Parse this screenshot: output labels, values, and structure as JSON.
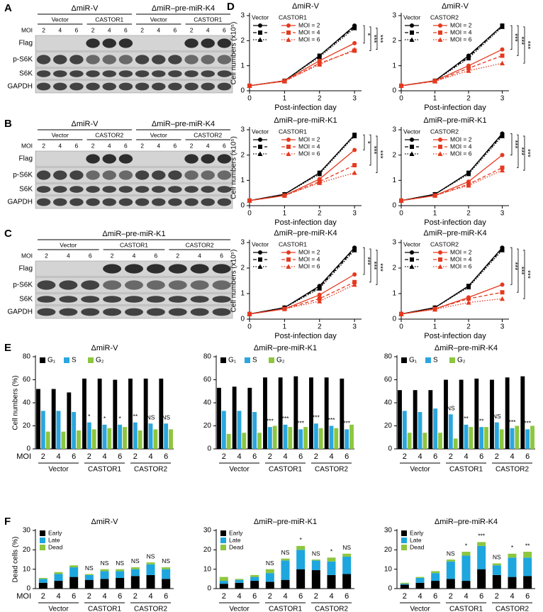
{
  "blots": [
    {
      "panel": "A",
      "moi_label": "MOI",
      "moi": [
        2,
        4,
        6
      ],
      "rows": [
        "Flag",
        "p-S6K",
        "S6K",
        "GAPDH"
      ],
      "groups": [
        {
          "title": "ΔmiR-V",
          "conditions": [
            "Vector",
            "CASTOR1"
          ]
        },
        {
          "title": "ΔmiR–pre-miR-K4",
          "conditions": [
            "Vector",
            "CASTOR1"
          ]
        }
      ]
    },
    {
      "panel": "B",
      "moi_label": "MOI",
      "moi": [
        2,
        4,
        6
      ],
      "rows": [
        "Flag",
        "p-S6K",
        "S6K",
        "GAPDH"
      ],
      "groups": [
        {
          "title": "ΔmiR-V",
          "conditions": [
            "Vector",
            "CASTOR2"
          ]
        },
        {
          "title": "ΔmiR–pre-miR-K4",
          "conditions": [
            "Vector",
            "CASTOR2"
          ]
        }
      ]
    },
    {
      "panel": "C",
      "moi_label": "MOI",
      "moi": [
        2,
        4,
        6
      ],
      "rows": [
        "Flag",
        "p-S6K",
        "S6K",
        "GAPDH"
      ],
      "groups": [
        {
          "title": "ΔmiR–pre-miR-K1",
          "conditions": [
            "Vector",
            "CASTOR1",
            "CASTOR2"
          ]
        }
      ]
    }
  ],
  "chart_data": [
    {
      "type": "line",
      "panel": "D",
      "title": "ΔmiR-V",
      "x": [
        0,
        1,
        2,
        3
      ],
      "xlim": [
        0,
        3.2
      ],
      "xticks": [
        0,
        1,
        2,
        3
      ],
      "ylim": [
        0,
        3
      ],
      "yticks": [
        0,
        1,
        2,
        3
      ],
      "xlabel": "Post-infection day",
      "ylabel": "Cell numbers (x10⁵)",
      "legend_headers": [
        "Vector",
        "CASTOR1"
      ],
      "legend_labels": [
        "MOI = 2",
        "MOI = 4",
        "MOI = 6"
      ],
      "series": [
        {
          "color": "#000000",
          "values": [
            0.2,
            0.4,
            1.4,
            2.6
          ]
        },
        {
          "color": "#000000",
          "values": [
            0.2,
            0.4,
            1.4,
            2.55
          ]
        },
        {
          "color": "#000000",
          "values": [
            0.2,
            0.4,
            1.35,
            2.5
          ]
        },
        {
          "color": "#e5391f",
          "values": [
            0.2,
            0.4,
            1.2,
            1.9
          ]
        },
        {
          "color": "#e5391f",
          "values": [
            0.2,
            0.38,
            1.1,
            1.6
          ]
        },
        {
          "color": "#e5391f",
          "values": [
            0.2,
            0.38,
            1.05,
            1.65
          ]
        }
      ],
      "significance": [
        "*",
        "***",
        "***"
      ]
    },
    {
      "type": "line",
      "title": "ΔmiR-V",
      "x": [
        0,
        1,
        2,
        3
      ],
      "xlim": [
        0,
        3.2
      ],
      "xticks": [
        0,
        1,
        2,
        3
      ],
      "ylim": [
        0,
        3
      ],
      "yticks": [
        0,
        1,
        2,
        3
      ],
      "xlabel": "Post-infection day",
      "legend_headers": [
        "Vector",
        "CASTOR2"
      ],
      "legend_labels": [
        "MOI = 2",
        "MOI = 4",
        "MOI = 6"
      ],
      "series": [
        {
          "color": "#000000",
          "values": [
            0.2,
            0.4,
            1.4,
            2.6
          ]
        },
        {
          "color": "#000000",
          "values": [
            0.2,
            0.4,
            1.35,
            2.6
          ]
        },
        {
          "color": "#000000",
          "values": [
            0.2,
            0.4,
            1.3,
            2.55
          ]
        },
        {
          "color": "#e5391f",
          "values": [
            0.2,
            0.4,
            1.0,
            1.65
          ]
        },
        {
          "color": "#e5391f",
          "values": [
            0.2,
            0.38,
            0.9,
            1.4
          ]
        },
        {
          "color": "#e5391f",
          "values": [
            0.2,
            0.38,
            0.8,
            1.1
          ]
        }
      ],
      "significance": [
        "***",
        "***",
        "***"
      ]
    },
    {
      "type": "line",
      "title": "ΔmiR–pre-miR-K1",
      "x": [
        0,
        1,
        2,
        3
      ],
      "xlim": [
        0,
        3.2
      ],
      "xticks": [
        0,
        1,
        2,
        3
      ],
      "ylim": [
        0,
        3
      ],
      "yticks": [
        0,
        1,
        2,
        3
      ],
      "xlabel": "Post-infection day",
      "ylabel": "Cell numbers (x10⁵)",
      "legend_headers": [
        "Vector",
        "CASTOR1"
      ],
      "legend_labels": [
        "MOI = 2",
        "MOI = 4",
        "MOI = 6"
      ],
      "series": [
        {
          "color": "#000000",
          "values": [
            0.2,
            0.45,
            1.3,
            2.8
          ]
        },
        {
          "color": "#000000",
          "values": [
            0.2,
            0.45,
            1.3,
            2.8
          ]
        },
        {
          "color": "#000000",
          "values": [
            0.2,
            0.45,
            1.25,
            2.75
          ]
        },
        {
          "color": "#e5391f",
          "values": [
            0.2,
            0.4,
            1.05,
            2.2
          ]
        },
        {
          "color": "#e5391f",
          "values": [
            0.2,
            0.4,
            0.95,
            1.6
          ]
        },
        {
          "color": "#e5391f",
          "values": [
            0.2,
            0.4,
            0.9,
            1.3
          ]
        }
      ],
      "significance": [
        "*",
        "***",
        "***"
      ]
    },
    {
      "type": "line",
      "title": "ΔmiR–pre-miR-K1",
      "x": [
        0,
        1,
        2,
        3
      ],
      "xlim": [
        0,
        3.2
      ],
      "xticks": [
        0,
        1,
        2,
        3
      ],
      "ylim": [
        0,
        3
      ],
      "yticks": [
        0,
        1,
        2,
        3
      ],
      "xlabel": "Post-infection day",
      "legend_headers": [
        "Vector",
        "CASTOR2"
      ],
      "legend_labels": [
        "MOI = 2",
        "MOI = 4",
        "MOI = 6"
      ],
      "series": [
        {
          "color": "#000000",
          "values": [
            0.2,
            0.45,
            1.3,
            2.85
          ]
        },
        {
          "color": "#000000",
          "values": [
            0.2,
            0.45,
            1.3,
            2.8
          ]
        },
        {
          "color": "#000000",
          "values": [
            0.2,
            0.45,
            1.25,
            2.75
          ]
        },
        {
          "color": "#e5391f",
          "values": [
            0.2,
            0.4,
            0.95,
            2.0
          ]
        },
        {
          "color": "#e5391f",
          "values": [
            0.2,
            0.4,
            0.85,
            1.5
          ]
        },
        {
          "color": "#e5391f",
          "values": [
            0.2,
            0.4,
            0.8,
            1.4
          ]
        }
      ],
      "significance": [
        "***",
        "***",
        "***"
      ]
    },
    {
      "type": "line",
      "title": "ΔmiR–pre-miR-K4",
      "x": [
        0,
        1,
        2,
        3
      ],
      "xlim": [
        0,
        3.2
      ],
      "xticks": [
        0,
        1,
        2,
        3
      ],
      "ylim": [
        0,
        3
      ],
      "yticks": [
        0,
        1,
        2,
        3
      ],
      "xlabel": "Post-infection day",
      "ylabel": "Cell numbers (x10⁵)",
      "legend_headers": [
        "Vector",
        "CASTOR1"
      ],
      "legend_labels": [
        "MOI = 2",
        "MOI = 4",
        "MOI = 6"
      ],
      "series": [
        {
          "color": "#000000",
          "values": [
            0.2,
            0.45,
            1.3,
            2.8
          ]
        },
        {
          "color": "#000000",
          "values": [
            0.2,
            0.45,
            1.25,
            2.75
          ]
        },
        {
          "color": "#000000",
          "values": [
            0.2,
            0.45,
            1.2,
            2.7
          ]
        },
        {
          "color": "#e5391f",
          "values": [
            0.2,
            0.4,
            0.95,
            1.75
          ]
        },
        {
          "color": "#e5391f",
          "values": [
            0.2,
            0.4,
            0.8,
            1.45
          ]
        },
        {
          "color": "#e5391f",
          "values": [
            0.2,
            0.4,
            0.7,
            1.35
          ]
        }
      ],
      "significance": [
        "***",
        "***",
        "***"
      ]
    },
    {
      "type": "line",
      "title": "ΔmiR–pre-miR-K4",
      "x": [
        0,
        1,
        2,
        3
      ],
      "xlim": [
        0,
        3.2
      ],
      "xticks": [
        0,
        1,
        2,
        3
      ],
      "ylim": [
        0,
        3
      ],
      "yticks": [
        0,
        1,
        2,
        3
      ],
      "xlabel": "Post-infection day",
      "legend_headers": [
        "Vector",
        "CASTOR2"
      ],
      "legend_labels": [
        "MOI = 2",
        "MOI = 4",
        "MOI = 6"
      ],
      "series": [
        {
          "color": "#000000",
          "values": [
            0.2,
            0.45,
            1.3,
            2.8
          ]
        },
        {
          "color": "#000000",
          "values": [
            0.2,
            0.45,
            1.3,
            2.75
          ]
        },
        {
          "color": "#000000",
          "values": [
            0.2,
            0.45,
            1.25,
            2.7
          ]
        },
        {
          "color": "#e5391f",
          "values": [
            0.2,
            0.4,
            0.85,
            1.35
          ]
        },
        {
          "color": "#e5391f",
          "values": [
            0.2,
            0.4,
            0.8,
            1.05
          ]
        },
        {
          "color": "#e5391f",
          "values": [
            0.2,
            0.38,
            0.65,
            0.8
          ]
        }
      ],
      "significance": [
        "***",
        "***",
        "***"
      ]
    },
    {
      "type": "bar",
      "panel": "E",
      "title": "ΔmiR-V",
      "ylabel": "Cell numbers (%)",
      "category_axis_label": "MOI",
      "categories": [
        "2",
        "4",
        "6",
        "2",
        "4",
        "6",
        "2",
        "4",
        "6"
      ],
      "groups": [
        "Vector",
        "CASTOR1",
        "CASTOR2"
      ],
      "ylim": [
        0,
        80
      ],
      "yticks": [
        0,
        20,
        40,
        60,
        80
      ],
      "series": [
        {
          "name": "G₁",
          "color": "#000000",
          "values": [
            52,
            52,
            49,
            61,
            61,
            60,
            61,
            61,
            61
          ]
        },
        {
          "name": "S",
          "color": "#2ba6de",
          "values": [
            33,
            33,
            32,
            23,
            21,
            21,
            23,
            22,
            22
          ]
        },
        {
          "name": "G₂",
          "color": "#8dc63f",
          "values": [
            15,
            15,
            16,
            17,
            18,
            19,
            16,
            17,
            17
          ]
        }
      ],
      "annotations": [
        null,
        null,
        null,
        "*",
        "*",
        "*",
        "**",
        "NS",
        "NS"
      ]
    },
    {
      "type": "bar",
      "title": "ΔmiR–pre-miR-K1",
      "categories": [
        "2",
        "4",
        "6",
        "2",
        "4",
        "6",
        "2",
        "4",
        "6"
      ],
      "groups": [
        "Vector",
        "CASTOR1",
        "CASTOR2"
      ],
      "ylim": [
        0,
        80
      ],
      "yticks": [
        0,
        20,
        40,
        60,
        80
      ],
      "series": [
        {
          "name": "G₁",
          "color": "#000000",
          "values": [
            53,
            54,
            53,
            62,
            62,
            63,
            62,
            62,
            61
          ]
        },
        {
          "name": "S",
          "color": "#2ba6de",
          "values": [
            33,
            33,
            32,
            19,
            21,
            17,
            22,
            20,
            17
          ]
        },
        {
          "name": "G₂",
          "color": "#8dc63f",
          "values": [
            13,
            14,
            14,
            20,
            19,
            19,
            18,
            18,
            21
          ]
        }
      ],
      "annotations": [
        null,
        null,
        null,
        "***",
        "***",
        "***",
        "***",
        "***",
        "***"
      ]
    },
    {
      "type": "bar",
      "title": "ΔmiR–pre-miR-K4",
      "categories": [
        "2",
        "4",
        "6",
        "2",
        "4",
        "6",
        "2",
        "4",
        "6"
      ],
      "groups": [
        "Vector",
        "CASTOR1",
        "CASTOR2"
      ],
      "ylim": [
        0,
        80
      ],
      "yticks": [
        0,
        20,
        40,
        60,
        80
      ],
      "series": [
        {
          "name": "G₁",
          "color": "#000000",
          "values": [
            51,
            51,
            51,
            60,
            60,
            61,
            60,
            62,
            63
          ]
        },
        {
          "name": "S",
          "color": "#2ba6de",
          "values": [
            33,
            32,
            35,
            30,
            21,
            19,
            23,
            18,
            17
          ]
        },
        {
          "name": "G₂",
          "color": "#8dc63f",
          "values": [
            14,
            14,
            14,
            9,
            19,
            19,
            17,
            20,
            20
          ]
        }
      ],
      "annotations": [
        null,
        null,
        null,
        "NS",
        "**",
        "**",
        "NS",
        "***",
        "***"
      ]
    },
    {
      "type": "stacked_bar",
      "panel": "F",
      "title": "ΔmiR-V",
      "ylabel": "Dead cells (%)",
      "category_axis_label": "MOI",
      "categories": [
        "2",
        "4",
        "6",
        "2",
        "4",
        "6",
        "2",
        "4",
        "6"
      ],
      "groups": [
        "Vector",
        "CASTOR1",
        "CASTOR2"
      ],
      "ylim": [
        0,
        30
      ],
      "yticks": [
        0,
        10,
        20,
        30
      ],
      "series": [
        {
          "name": "Early",
          "color": "#000000",
          "values": [
            3,
            4,
            6,
            4.5,
            5,
            5.5,
            6.5,
            7,
            5
          ]
        },
        {
          "name": "Late",
          "color": "#1ea6de",
          "values": [
            2,
            3.5,
            5,
            2.5,
            4,
            3.5,
            3.5,
            5.5,
            5
          ]
        },
        {
          "name": "Dead",
          "color": "#8dc63f",
          "values": [
            0.5,
            1,
            1,
            0.5,
            1,
            1,
            1,
            1,
            1
          ]
        }
      ],
      "annotations": [
        null,
        null,
        null,
        "NS",
        "NS",
        "NS",
        "NS",
        "NS",
        "NS"
      ]
    },
    {
      "type": "stacked_bar",
      "title": "ΔmiR–pre-miR-K1",
      "categories": [
        "2",
        "4",
        "6",
        "2",
        "4",
        "6",
        "2",
        "4",
        "6"
      ],
      "groups": [
        "Vector",
        "CASTOR1",
        "CASTOR2"
      ],
      "ylim": [
        0,
        30
      ],
      "yticks": [
        0,
        10,
        20,
        30
      ],
      "series": [
        {
          "name": "Early",
          "color": "#000000",
          "values": [
            2.5,
            3,
            4,
            3.5,
            4.5,
            10,
            9.5,
            7,
            7.5
          ]
        },
        {
          "name": "Late",
          "color": "#1ea6de",
          "values": [
            1.5,
            1.5,
            2,
            4.5,
            10,
            10,
            5,
            7,
            9
          ]
        },
        {
          "name": "Dead",
          "color": "#8dc63f",
          "values": [
            2,
            0.5,
            1,
            2,
            1,
            2,
            0.5,
            2,
            1.5
          ]
        }
      ],
      "annotations": [
        null,
        null,
        null,
        "NS",
        "NS",
        "*",
        "NS",
        "*",
        "NS"
      ]
    },
    {
      "type": "stacked_bar",
      "title": "ΔmiR–pre-miR-K4",
      "categories": [
        "2",
        "4",
        "6",
        "2",
        "4",
        "6",
        "2",
        "4",
        "6"
      ],
      "groups": [
        "Vector",
        "CASTOR1",
        "CASTOR2"
      ],
      "ylim": [
        0,
        30
      ],
      "yticks": [
        0,
        10,
        20,
        30
      ],
      "series": [
        {
          "name": "Early",
          "color": "#000000",
          "values": [
            2,
            3,
            4,
            5,
            4,
            10,
            7,
            6,
            6.5
          ]
        },
        {
          "name": "Late",
          "color": "#1ea6de",
          "values": [
            0.5,
            2.5,
            4,
            9,
            13,
            12,
            5,
            10,
            9.5
          ]
        },
        {
          "name": "Dead",
          "color": "#8dc63f",
          "values": [
            0.5,
            0.5,
            1,
            1,
            2,
            2,
            1,
            2,
            3
          ]
        }
      ],
      "annotations": [
        null,
        null,
        null,
        "NS",
        "*",
        "***",
        "NS",
        "*",
        "**"
      ]
    }
  ]
}
